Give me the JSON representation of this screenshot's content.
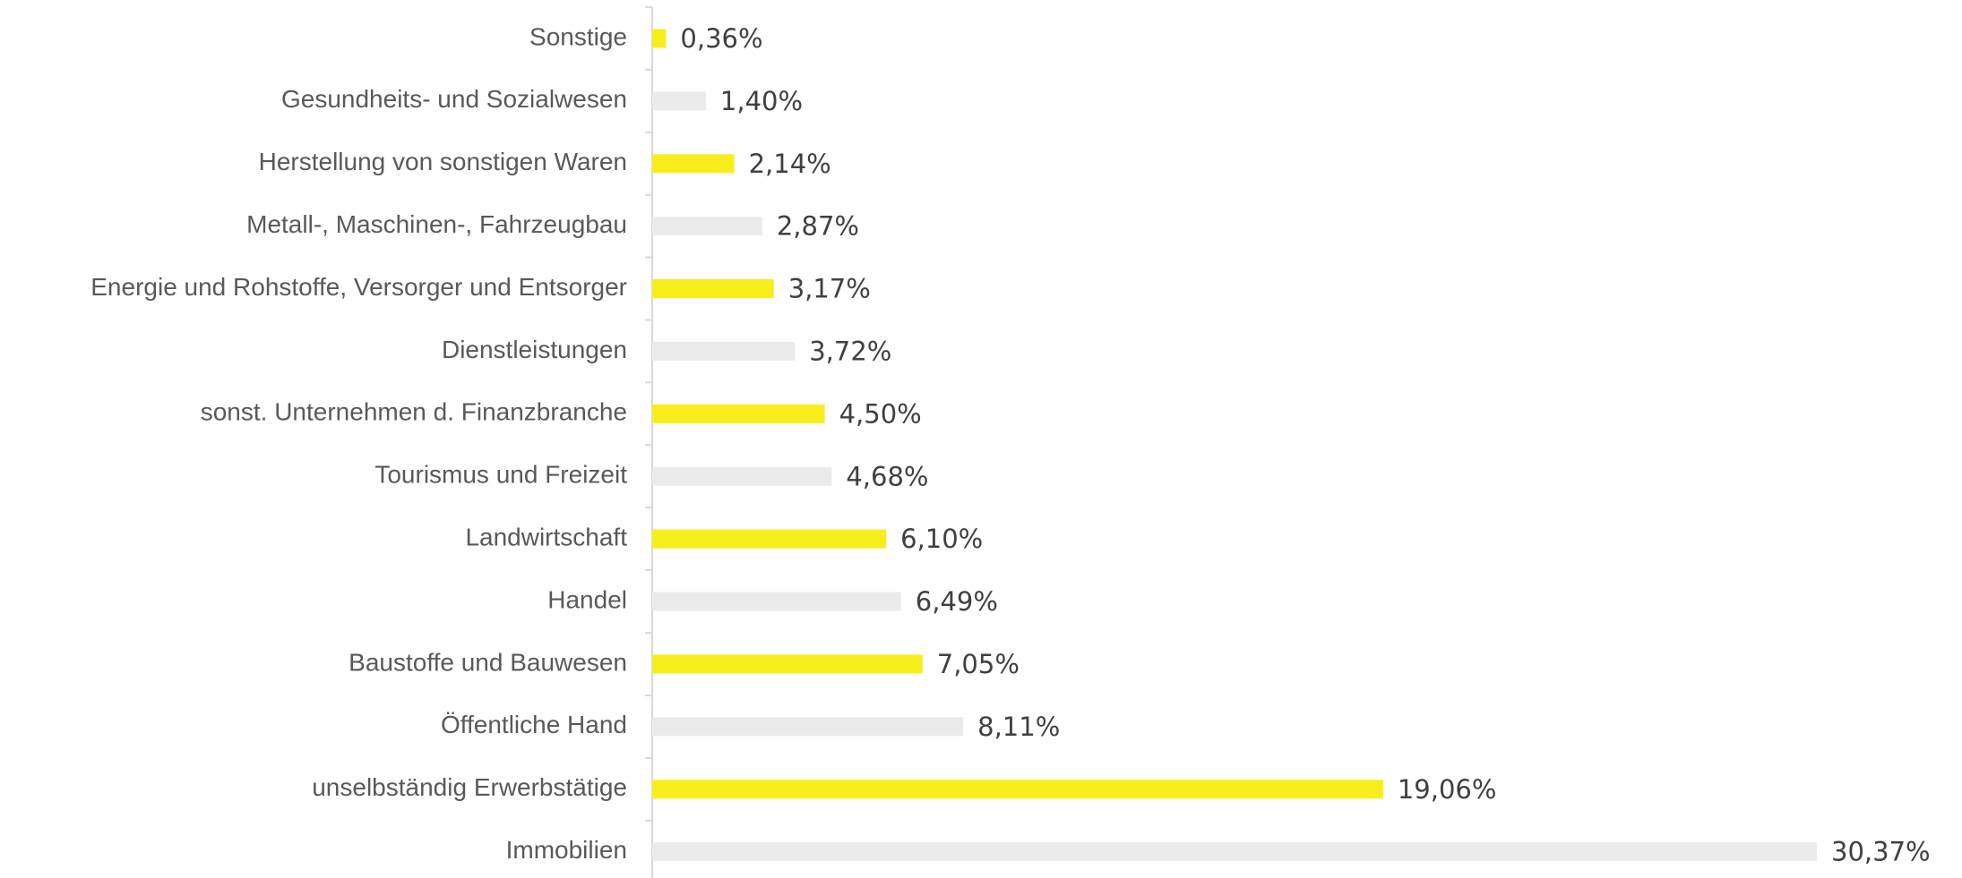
{
  "chart_data": {
    "type": "hbar",
    "categories": [
      "Sonstige",
      "Gesundheits- und Sozialwesen",
      "Herstellung von sonstigen Waren",
      "Metall-, Maschinen-, Fahrzeugbau",
      "Energie und Rohstoffe, Versorger und Entsorger",
      "Dienstleistungen",
      "sonst. Unternehmen d. Finanzbranche",
      "Tourismus und Freizeit",
      "Landwirtschaft",
      "Handel",
      "Baustoffe und Bauwesen",
      "Öffentliche Hand",
      "unselbständig Erwerbstätige",
      "Immobilien"
    ],
    "values": [
      0.36,
      1.4,
      2.14,
      2.87,
      3.17,
      3.72,
      4.5,
      4.68,
      6.1,
      6.49,
      7.05,
      8.11,
      19.06,
      30.37
    ],
    "value_labels": [
      "0,36%",
      "1,40%",
      "2,14%",
      "2,87%",
      "3,17%",
      "3,72%",
      "4,50%",
      "4,68%",
      "6,10%",
      "6,49%",
      "7,05%",
      "8,11%",
      "19,06%",
      "30,37%"
    ],
    "colors": [
      "#f8ee1c",
      "#ebebeb",
      "#f8ee1c",
      "#ebebeb",
      "#f8ee1c",
      "#ebebeb",
      "#f8ee1c",
      "#ebebeb",
      "#f8ee1c",
      "#ebebeb",
      "#f8ee1c",
      "#ebebeb",
      "#f8ee1c",
      "#ebebeb"
    ]
  }
}
